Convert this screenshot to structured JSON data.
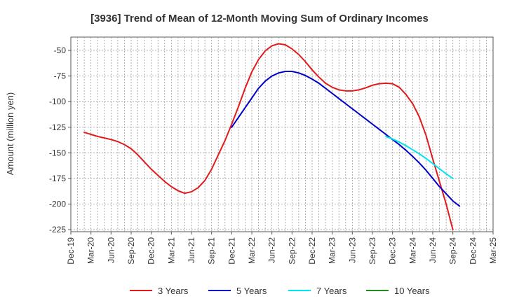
{
  "chart_data": {
    "type": "line",
    "title": "[3936]  Trend of Mean of 12-Month Moving Sum of Ordinary Incomes",
    "xlabel": "",
    "ylabel": "Amount (million yen)",
    "ylim": [
      -227,
      -37
    ],
    "y_ticks": [
      -50,
      -75,
      -100,
      -125,
      -150,
      -175,
      -200,
      -225
    ],
    "x_categories": [
      "Dec-19",
      "Mar-20",
      "Jun-20",
      "Sep-20",
      "Dec-20",
      "Mar-21",
      "Jun-21",
      "Sep-21",
      "Dec-21",
      "Mar-22",
      "Jun-22",
      "Sep-22",
      "Dec-22",
      "Mar-23",
      "Jun-23",
      "Sep-23",
      "Dec-23",
      "Mar-24",
      "Jun-24",
      "Sep-24",
      "Dec-24",
      "Mar-25"
    ],
    "grid": true,
    "legend_position": "bottom",
    "series": [
      {
        "name": "3 Years",
        "color": "#e31a1c",
        "points": [
          [
            2,
            -130
          ],
          [
            3,
            -132
          ],
          [
            4,
            -134
          ],
          [
            5,
            -135.5
          ],
          [
            6,
            -137
          ],
          [
            7,
            -139
          ],
          [
            8,
            -142
          ],
          [
            9,
            -146
          ],
          [
            10,
            -152
          ],
          [
            11,
            -159
          ],
          [
            12,
            -166
          ],
          [
            13,
            -172
          ],
          [
            14,
            -178
          ],
          [
            15,
            -183
          ],
          [
            16,
            -187
          ],
          [
            17,
            -189.5
          ],
          [
            18,
            -188
          ],
          [
            19,
            -184
          ],
          [
            20,
            -177
          ],
          [
            21,
            -166
          ],
          [
            22,
            -152
          ],
          [
            23,
            -138
          ],
          [
            24,
            -122
          ],
          [
            25,
            -105
          ],
          [
            26,
            -87
          ],
          [
            27,
            -71
          ],
          [
            28,
            -59
          ],
          [
            29,
            -50.5
          ],
          [
            30,
            -45.5
          ],
          [
            31,
            -43.5
          ],
          [
            32,
            -44.5
          ],
          [
            33,
            -48.5
          ],
          [
            34,
            -54
          ],
          [
            35,
            -61
          ],
          [
            36,
            -69
          ],
          [
            37,
            -76
          ],
          [
            38,
            -82
          ],
          [
            39,
            -86
          ],
          [
            40,
            -88.5
          ],
          [
            41,
            -89.5
          ],
          [
            42,
            -89.5
          ],
          [
            43,
            -88.5
          ],
          [
            44,
            -86.5
          ],
          [
            45,
            -84
          ],
          [
            46,
            -82.5
          ],
          [
            47,
            -82
          ],
          [
            48,
            -82.5
          ],
          [
            49,
            -86
          ],
          [
            50,
            -93
          ],
          [
            51,
            -102
          ],
          [
            52,
            -115
          ],
          [
            53,
            -133
          ],
          [
            54,
            -156
          ],
          [
            55,
            -178
          ],
          [
            56,
            -200
          ],
          [
            57,
            -225
          ]
        ]
      },
      {
        "name": "5 Years",
        "color": "#0000cd",
        "points": [
          [
            24,
            -125
          ],
          [
            25,
            -115.5
          ],
          [
            26,
            -106
          ],
          [
            27,
            -96.5
          ],
          [
            28,
            -87
          ],
          [
            29,
            -80
          ],
          [
            30,
            -75
          ],
          [
            31,
            -72
          ],
          [
            32,
            -70.5
          ],
          [
            33,
            -70.5
          ],
          [
            34,
            -72
          ],
          [
            35,
            -74.5
          ],
          [
            36,
            -78
          ],
          [
            37,
            -82
          ],
          [
            38,
            -87
          ],
          [
            39,
            -92
          ],
          [
            40,
            -97
          ],
          [
            41,
            -102
          ],
          [
            42,
            -107
          ],
          [
            43,
            -112
          ],
          [
            44,
            -117
          ],
          [
            45,
            -122
          ],
          [
            46,
            -127
          ],
          [
            47,
            -132
          ],
          [
            48,
            -137
          ],
          [
            49,
            -142
          ],
          [
            50,
            -147.5
          ],
          [
            51,
            -153.5
          ],
          [
            52,
            -160
          ],
          [
            53,
            -167
          ],
          [
            54,
            -175
          ],
          [
            55,
            -183
          ],
          [
            56,
            -190
          ],
          [
            57,
            -197
          ],
          [
            58,
            -202
          ]
        ]
      },
      {
        "name": "7 Years",
        "color": "#00e5ee",
        "points": [
          [
            47,
            -134
          ],
          [
            48,
            -136.5
          ],
          [
            49,
            -139.5
          ],
          [
            50,
            -143
          ],
          [
            51,
            -147
          ],
          [
            52,
            -151
          ],
          [
            53,
            -155.5
          ],
          [
            54,
            -160.5
          ],
          [
            55,
            -165.5
          ],
          [
            56,
            -170.5
          ],
          [
            57,
            -175
          ]
        ]
      },
      {
        "name": "10 Years",
        "color": "#228b22",
        "points": []
      }
    ]
  }
}
